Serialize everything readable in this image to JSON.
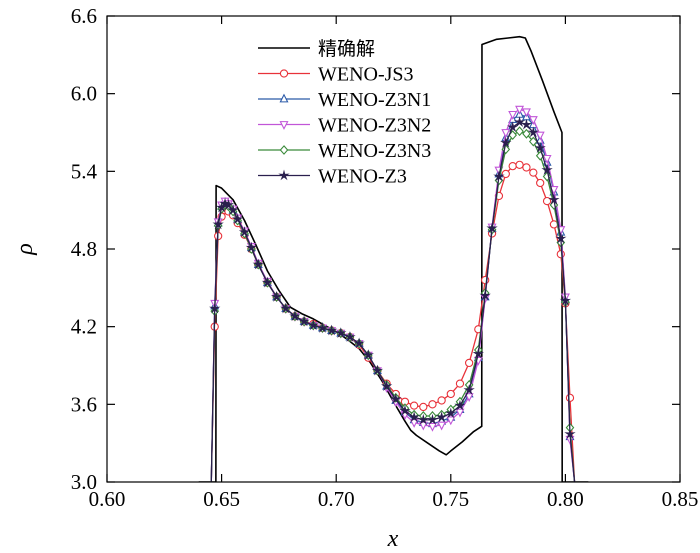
{
  "chart_data": {
    "type": "line",
    "title": "",
    "xlabel": "x",
    "ylabel": "ρ",
    "xlim": [
      0.6,
      0.85
    ],
    "ylim": [
      3.0,
      6.6
    ],
    "xticks": [
      "0.60",
      "0.65",
      "0.70",
      "0.75",
      "0.80",
      "0.85"
    ],
    "yticks": [
      "3.0",
      "3.6",
      "4.2",
      "4.8",
      "5.4",
      "6.0",
      "6.6"
    ],
    "legend_position": "top-center",
    "series": [
      {
        "name": "精确解",
        "color": "#000000",
        "marker": "none",
        "x": [
          0.64,
          0.6475,
          0.6476,
          0.65,
          0.655,
          0.66,
          0.665,
          0.67,
          0.675,
          0.68,
          0.685,
          0.69,
          0.695,
          0.7,
          0.705,
          0.71,
          0.715,
          0.72,
          0.725,
          0.73,
          0.7325,
          0.735,
          0.74,
          0.745,
          0.748,
          0.75,
          0.755,
          0.76,
          0.7635,
          0.7636,
          0.77,
          0.775,
          0.78,
          0.7825,
          0.785,
          0.79,
          0.795,
          0.7985,
          0.7986,
          0.81
        ],
        "y": [
          3.0,
          3.0,
          5.29,
          5.27,
          5.18,
          5.02,
          4.83,
          4.63,
          4.48,
          4.35,
          4.3,
          4.26,
          4.21,
          4.16,
          4.1,
          4.03,
          3.92,
          3.78,
          3.62,
          3.47,
          3.4,
          3.36,
          3.3,
          3.24,
          3.21,
          3.24,
          3.31,
          3.39,
          3.43,
          6.38,
          6.42,
          6.43,
          6.44,
          6.43,
          6.33,
          6.1,
          5.86,
          5.7,
          3.0,
          3.0
        ]
      },
      {
        "name": "WENO-JS3",
        "color": "#e8323a",
        "marker": "circle",
        "x": [
          0.6455,
          0.647,
          0.6485,
          0.65,
          0.6515,
          0.653,
          0.655,
          0.657,
          0.66,
          0.663,
          0.666,
          0.67,
          0.674,
          0.678,
          0.682,
          0.686,
          0.69,
          0.694,
          0.698,
          0.702,
          0.706,
          0.71,
          0.714,
          0.718,
          0.722,
          0.726,
          0.73,
          0.734,
          0.738,
          0.742,
          0.746,
          0.75,
          0.754,
          0.758,
          0.762,
          0.765,
          0.768,
          0.771,
          0.774,
          0.777,
          0.78,
          0.783,
          0.786,
          0.789,
          0.792,
          0.795,
          0.798,
          0.8,
          0.802,
          0.804
        ],
        "y": [
          3.0,
          4.2,
          4.9,
          5.05,
          5.1,
          5.09,
          5.06,
          5.0,
          4.91,
          4.8,
          4.68,
          4.54,
          4.43,
          4.34,
          4.28,
          4.24,
          4.22,
          4.19,
          4.17,
          4.15,
          4.12,
          4.06,
          3.96,
          3.86,
          3.76,
          3.68,
          3.62,
          3.59,
          3.58,
          3.6,
          3.63,
          3.68,
          3.76,
          3.92,
          4.18,
          4.56,
          4.92,
          5.21,
          5.38,
          5.44,
          5.45,
          5.43,
          5.39,
          5.31,
          5.17,
          4.99,
          4.76,
          4.38,
          3.65,
          3.0
        ]
      },
      {
        "name": "WENO-Z3N1",
        "color": "#2b5aa8",
        "marker": "triangle-up",
        "x": [
          0.6455,
          0.647,
          0.6485,
          0.65,
          0.6515,
          0.653,
          0.655,
          0.657,
          0.66,
          0.663,
          0.666,
          0.67,
          0.674,
          0.678,
          0.682,
          0.686,
          0.69,
          0.694,
          0.698,
          0.702,
          0.706,
          0.71,
          0.714,
          0.718,
          0.722,
          0.726,
          0.73,
          0.734,
          0.738,
          0.742,
          0.746,
          0.75,
          0.754,
          0.758,
          0.762,
          0.765,
          0.768,
          0.771,
          0.774,
          0.777,
          0.78,
          0.783,
          0.786,
          0.789,
          0.792,
          0.795,
          0.798,
          0.8,
          0.802,
          0.804
        ],
        "y": [
          3.0,
          4.36,
          5.0,
          5.13,
          5.16,
          5.14,
          5.1,
          5.03,
          4.93,
          4.81,
          4.68,
          4.54,
          4.43,
          4.34,
          4.28,
          4.24,
          4.21,
          4.19,
          4.17,
          4.15,
          4.12,
          4.07,
          3.98,
          3.86,
          3.74,
          3.63,
          3.54,
          3.48,
          3.46,
          3.45,
          3.47,
          3.5,
          3.56,
          3.68,
          3.96,
          4.43,
          4.96,
          5.38,
          5.66,
          5.8,
          5.84,
          5.82,
          5.76,
          5.64,
          5.47,
          5.24,
          4.93,
          4.41,
          3.35,
          3.0
        ]
      },
      {
        "name": "WENO-Z3N2",
        "color": "#c156d8",
        "marker": "triangle-down",
        "x": [
          0.6455,
          0.647,
          0.6485,
          0.65,
          0.6515,
          0.653,
          0.655,
          0.657,
          0.66,
          0.663,
          0.666,
          0.67,
          0.674,
          0.678,
          0.682,
          0.686,
          0.69,
          0.694,
          0.698,
          0.702,
          0.706,
          0.71,
          0.714,
          0.718,
          0.722,
          0.726,
          0.73,
          0.734,
          0.738,
          0.742,
          0.746,
          0.75,
          0.754,
          0.758,
          0.762,
          0.765,
          0.768,
          0.771,
          0.774,
          0.777,
          0.78,
          0.783,
          0.786,
          0.789,
          0.792,
          0.795,
          0.798,
          0.8,
          0.802,
          0.804
        ],
        "y": [
          3.0,
          4.38,
          5.01,
          5.14,
          5.17,
          5.15,
          5.11,
          5.04,
          4.94,
          4.82,
          4.69,
          4.55,
          4.43,
          4.34,
          4.28,
          4.24,
          4.21,
          4.19,
          4.17,
          4.15,
          4.12,
          4.07,
          3.98,
          3.86,
          3.73,
          3.62,
          3.52,
          3.46,
          3.44,
          3.43,
          3.44,
          3.48,
          3.54,
          3.66,
          3.94,
          4.42,
          4.97,
          5.41,
          5.7,
          5.84,
          5.88,
          5.86,
          5.8,
          5.68,
          5.5,
          5.26,
          4.95,
          4.43,
          3.33,
          3.0
        ]
      },
      {
        "name": "WENO-Z3N3",
        "color": "#3a8a3a",
        "marker": "diamond",
        "x": [
          0.6455,
          0.647,
          0.6485,
          0.65,
          0.6515,
          0.653,
          0.655,
          0.657,
          0.66,
          0.663,
          0.666,
          0.67,
          0.674,
          0.678,
          0.682,
          0.686,
          0.69,
          0.694,
          0.698,
          0.702,
          0.706,
          0.71,
          0.714,
          0.718,
          0.722,
          0.726,
          0.73,
          0.734,
          0.738,
          0.742,
          0.746,
          0.75,
          0.754,
          0.758,
          0.762,
          0.765,
          0.768,
          0.771,
          0.774,
          0.777,
          0.78,
          0.783,
          0.786,
          0.789,
          0.792,
          0.795,
          0.798,
          0.8,
          0.802,
          0.804
        ],
        "y": [
          3.0,
          4.32,
          4.98,
          5.11,
          5.14,
          5.13,
          5.09,
          5.02,
          4.92,
          4.8,
          4.68,
          4.54,
          4.43,
          4.34,
          4.28,
          4.24,
          4.21,
          4.19,
          4.17,
          4.15,
          4.12,
          4.07,
          3.98,
          3.86,
          3.75,
          3.65,
          3.57,
          3.52,
          3.51,
          3.51,
          3.52,
          3.56,
          3.62,
          3.75,
          4.02,
          4.46,
          4.95,
          5.33,
          5.57,
          5.68,
          5.71,
          5.69,
          5.63,
          5.52,
          5.36,
          5.14,
          4.85,
          4.39,
          3.42,
          3.0
        ]
      },
      {
        "name": "WENO-Z3",
        "color": "#2a1f4e",
        "marker": "star",
        "x": [
          0.6455,
          0.647,
          0.6485,
          0.65,
          0.6515,
          0.653,
          0.655,
          0.657,
          0.66,
          0.663,
          0.666,
          0.67,
          0.674,
          0.678,
          0.682,
          0.686,
          0.69,
          0.694,
          0.698,
          0.702,
          0.706,
          0.71,
          0.714,
          0.718,
          0.722,
          0.726,
          0.73,
          0.734,
          0.738,
          0.742,
          0.746,
          0.75,
          0.754,
          0.758,
          0.762,
          0.765,
          0.768,
          0.771,
          0.774,
          0.777,
          0.78,
          0.783,
          0.786,
          0.789,
          0.792,
          0.795,
          0.798,
          0.8,
          0.802,
          0.804
        ],
        "y": [
          3.0,
          4.34,
          4.99,
          5.12,
          5.15,
          5.14,
          5.1,
          5.03,
          4.93,
          4.81,
          4.68,
          4.54,
          4.43,
          4.34,
          4.28,
          4.24,
          4.21,
          4.19,
          4.17,
          4.15,
          4.12,
          4.07,
          3.98,
          3.86,
          3.74,
          3.64,
          3.55,
          3.5,
          3.48,
          3.48,
          3.5,
          3.53,
          3.59,
          3.71,
          3.99,
          4.44,
          4.96,
          5.36,
          5.62,
          5.74,
          5.78,
          5.76,
          5.7,
          5.58,
          5.41,
          5.18,
          4.88,
          4.4,
          3.37,
          3.0
        ]
      }
    ]
  }
}
